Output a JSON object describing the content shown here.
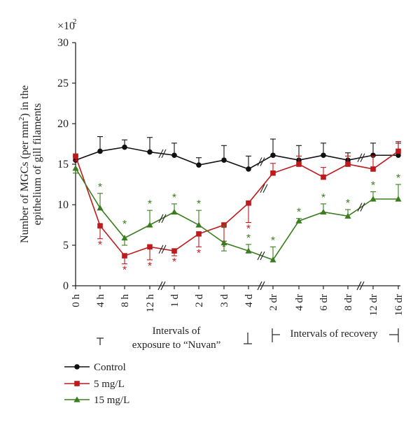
{
  "chart_data": {
    "type": "line",
    "multiplier_label": "×10",
    "multiplier_exp": "2",
    "ylabel": "Number of MGCs (per mm²) in the epithelium of gill filaments",
    "ylabel_line1": "Number of MGCs (per mm",
    "ylabel_sup": "2",
    "ylabel_line1_end": ") in the",
    "ylabel_line2": "epithelium of gill filaments",
    "ylim": [
      0,
      30
    ],
    "yticks": [
      "0",
      "5",
      "10",
      "15",
      "20",
      "25",
      "30"
    ],
    "categories": [
      "0 h",
      "4 h",
      "8 h",
      "12 h",
      "1 d",
      "2 d",
      "3 d",
      "4 d",
      "2 dr",
      "4 dr",
      "6 dr",
      "8 dr",
      "12 dr",
      "16 dr"
    ],
    "groups": [
      {
        "line1": "Intervals of",
        "line2": "exposure to “Nuvan”"
      },
      {
        "line1": "Intervals of recovery"
      }
    ],
    "series": [
      {
        "name": "Control",
        "color": "#111111",
        "marker": "circle",
        "values": [
          15.5,
          16.6,
          17.1,
          16.5,
          16.1,
          14.9,
          15.5,
          14.4,
          16.1,
          15.5,
          16.1,
          15.5,
          16.1,
          16.1
        ],
        "errors": [
          0.5,
          1.8,
          0.9,
          1.8,
          1.5,
          0.9,
          1.8,
          1.6,
          2.0,
          1.8,
          1.5,
          0.9,
          1.5,
          1.5
        ]
      },
      {
        "name": "5 mg/L",
        "color": "#c0191c",
        "marker": "square",
        "values": [
          16.0,
          7.4,
          3.7,
          4.8,
          4.3,
          6.4,
          7.5,
          10.2,
          13.9,
          15.0,
          13.4,
          15.0,
          14.4,
          16.6
        ],
        "errors": [
          0.6,
          1.6,
          1.0,
          1.6,
          0.6,
          1.6,
          2.0,
          2.4,
          1.2,
          1.0,
          1.2,
          1.0,
          1.6,
          1.2
        ],
        "significant": [
          false,
          true,
          true,
          true,
          true,
          true,
          true,
          true,
          false,
          false,
          false,
          false,
          false,
          false
        ]
      },
      {
        "name": "15 mg/L",
        "color": "#3a7d1f",
        "marker": "triangle",
        "values": [
          14.5,
          9.6,
          5.9,
          7.5,
          9.1,
          7.5,
          5.3,
          4.3,
          3.2,
          8.0,
          9.1,
          8.6,
          10.7,
          10.7
        ],
        "errors": [
          0.6,
          1.8,
          0.9,
          1.8,
          1.0,
          1.8,
          1.0,
          0.8,
          1.6,
          0.3,
          1.0,
          0.8,
          0.9,
          1.8
        ],
        "significant": [
          false,
          true,
          true,
          true,
          true,
          true,
          true,
          true,
          true,
          true,
          true,
          true,
          true,
          true
        ]
      }
    ],
    "significance_mark": "*",
    "legend_position": "bottom-left",
    "grid": false
  }
}
